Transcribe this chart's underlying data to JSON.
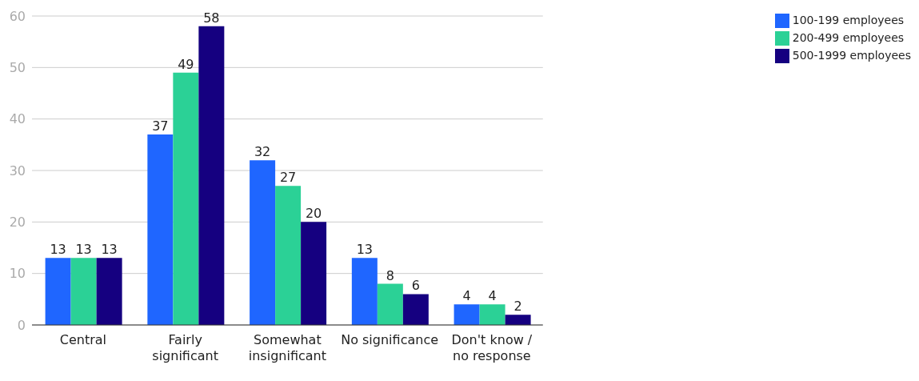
{
  "chart_data": {
    "type": "bar",
    "categories": [
      "Central",
      "Fairly significant",
      "Somewhat insignificant",
      "No significance",
      "Don't know / no response"
    ],
    "series": [
      {
        "name": "100-199 employees",
        "color": "#1f66ff",
        "values": [
          13,
          37,
          32,
          13,
          4
        ]
      },
      {
        "name": "200-499 employees",
        "color": "#2bd196",
        "values": [
          13,
          49,
          27,
          8,
          4
        ]
      },
      {
        "name": "500-1999 employees",
        "color": "#150080",
        "values": [
          13,
          58,
          20,
          6,
          2
        ]
      }
    ],
    "ylim": [
      0,
      60
    ],
    "yticks": [
      0,
      10,
      20,
      30,
      40,
      50,
      60
    ],
    "grid": "y",
    "legend": "top right",
    "data_labels": true
  }
}
